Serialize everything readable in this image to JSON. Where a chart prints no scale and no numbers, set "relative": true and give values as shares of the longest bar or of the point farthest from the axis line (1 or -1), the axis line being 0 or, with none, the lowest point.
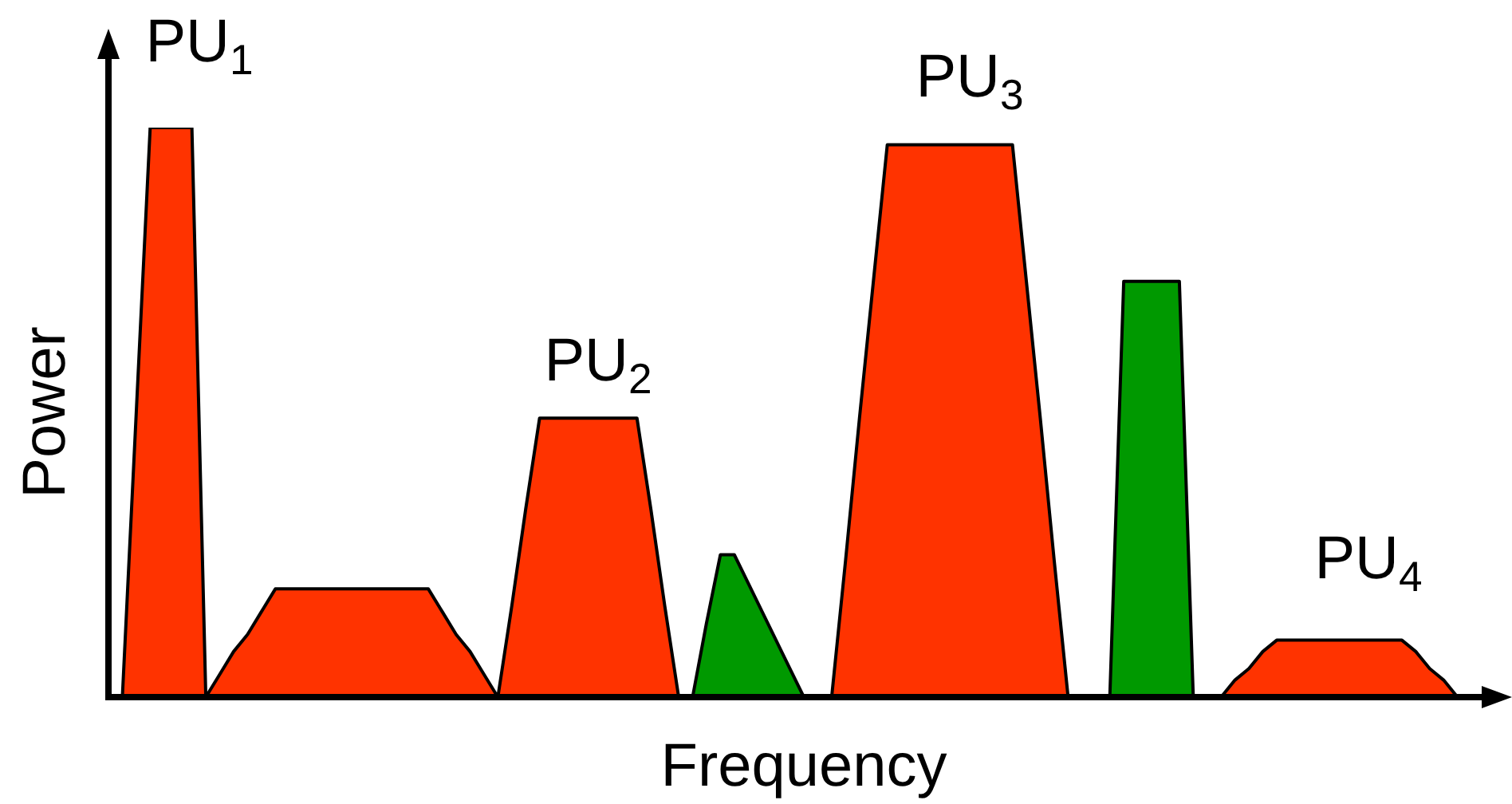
{
  "chart_data": {
    "type": "area",
    "relative": true,
    "xlabel": "Frequency",
    "ylabel": "Power",
    "marker": "none",
    "categories": [
      null,
      null,
      null,
      null,
      null,
      null,
      null,
      null,
      null,
      null,
      null,
      null,
      null,
      null,
      null,
      null,
      null,
      null,
      null,
      null,
      null,
      null,
      null,
      null,
      null,
      null,
      null,
      null,
      null,
      null,
      null,
      null,
      null,
      null,
      null,
      null,
      null,
      null,
      null,
      null,
      null,
      null,
      null,
      null,
      null,
      null,
      null,
      null,
      null,
      null,
      null,
      null,
      null,
      null,
      null,
      null,
      null,
      null,
      null,
      null,
      null,
      null,
      null,
      null,
      null,
      null,
      null,
      null,
      null,
      null,
      null,
      null,
      null,
      null,
      null,
      null,
      null,
      null,
      null,
      null,
      null,
      null,
      null,
      null,
      null,
      null,
      null,
      null,
      null,
      null,
      null,
      null,
      null,
      null,
      null,
      null,
      null,
      null,
      null,
      null,
      null
    ],
    "series": [
      {
        "color": "#ff3300",
        "values": [
          null,
          0,
          0.5,
          1,
          1,
          1,
          1,
          0,
          0.04,
          0.08,
          0.11,
          0.15,
          0.19,
          0.19,
          0.19,
          0.19,
          0.19,
          0.19,
          0.19,
          0.19,
          0.19,
          0.19,
          0.19,
          0.19,
          0.15,
          0.11,
          0.08,
          0.04,
          0,
          0.16,
          0.33,
          0.49,
          0.49,
          0.49,
          0.49,
          0.49,
          0.49,
          0.49,
          0.49,
          0.33,
          0.16,
          0,
          0,
          0,
          0,
          0,
          0,
          0,
          0,
          0,
          0,
          0,
          0,
          0.24,
          0.49,
          0.73,
          0.97,
          0.97,
          0.97,
          0.97,
          0.97,
          0.97,
          0.97,
          0.97,
          0.97,
          0.97,
          0.73,
          0.49,
          0.24,
          0,
          0,
          0,
          0,
          0,
          0,
          0,
          0,
          0,
          0,
          0,
          0,
          0.03,
          0.05,
          0.08,
          0.1,
          0.1,
          0.1,
          0.1,
          0.1,
          0.1,
          0.1,
          0.1,
          0.1,
          0.1,
          0.08,
          0.05,
          0.03,
          0,
          null,
          null,
          null
        ]
      },
      {
        "color": "#009900",
        "values": [
          null,
          null,
          null,
          null,
          null,
          null,
          null,
          null,
          null,
          null,
          null,
          null,
          null,
          null,
          null,
          null,
          null,
          null,
          null,
          null,
          null,
          null,
          null,
          null,
          null,
          null,
          null,
          null,
          null,
          null,
          null,
          null,
          null,
          null,
          null,
          null,
          null,
          null,
          null,
          null,
          null,
          null,
          0,
          0.13,
          0.25,
          0.25,
          0.2,
          0.15,
          0.1,
          0.05,
          0,
          0,
          0,
          0,
          0,
          0,
          0,
          0,
          0,
          0,
          0,
          0,
          0,
          0,
          0,
          0,
          0,
          0,
          0,
          0,
          0,
          0,
          0,
          0.73,
          0.73,
          0.73,
          0.73,
          0.73,
          0,
          null,
          null,
          null,
          null,
          null,
          null,
          null,
          null,
          null,
          null,
          null,
          null,
          null,
          null,
          null,
          null,
          null,
          null,
          null,
          null,
          null,
          null
        ]
      }
    ],
    "annotations": [
      "PU$_{1}$",
      "PU$_{2}$",
      "PU$_{3}$",
      "PU$_{4}$"
    ]
  }
}
